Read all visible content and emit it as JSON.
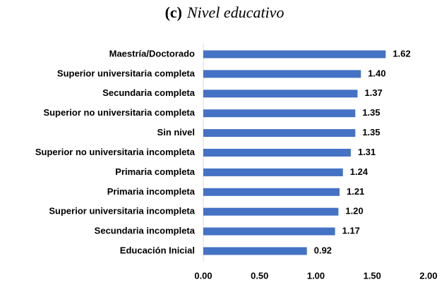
{
  "chart_data": {
    "type": "hbar",
    "panel_label": "(c)",
    "title": "Nivel educativo",
    "categories": [
      "Maestría/Doctorado",
      "Superior universitaria completa",
      "Secundaria completa",
      "Superior no universitaria completa",
      "Sin nivel",
      "Superior no universitaria incompleta",
      "Primaria completa",
      "Primaria incompleta",
      "Superior universitaria incompleta",
      "Secundaria incompleta",
      "Educación Inicial"
    ],
    "values": [
      1.62,
      1.4,
      1.37,
      1.35,
      1.35,
      1.31,
      1.24,
      1.21,
      1.2,
      1.17,
      0.92
    ],
    "value_labels": [
      "1.62",
      "1.40",
      "1.37",
      "1.35",
      "1.35",
      "1.31",
      "1.24",
      "1.21",
      "1.20",
      "1.17",
      "0.92"
    ],
    "color": "#4472c4",
    "xlim": [
      0,
      2
    ],
    "xticks": [
      {
        "value": 0,
        "label": "0.00"
      },
      {
        "value": 0.5,
        "label": "0.50"
      },
      {
        "value": 1,
        "label": "1.00"
      },
      {
        "value": 1.5,
        "label": "1.50"
      },
      {
        "value": 2,
        "label": "2.00"
      }
    ],
    "grid": false
  }
}
